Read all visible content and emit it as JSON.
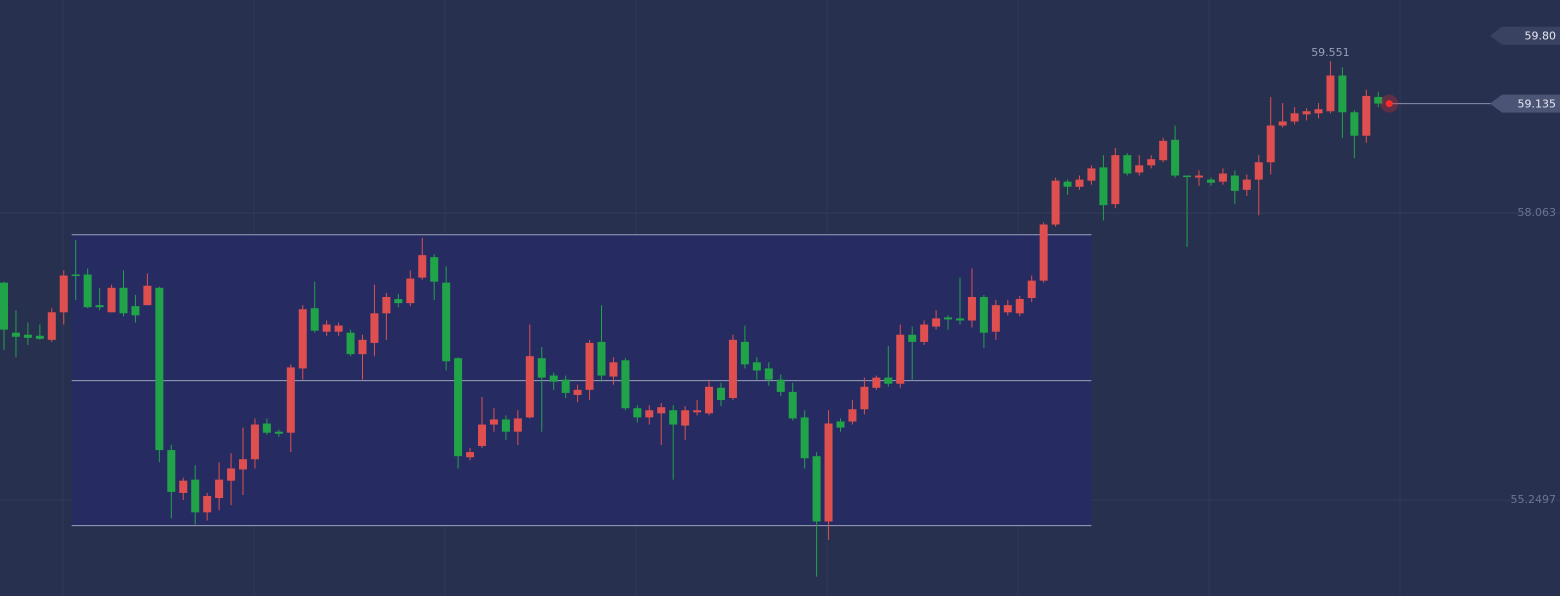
{
  "chart_data": {
    "type": "candlestick",
    "up_color": "#e04f4f",
    "down_color": "#21a349",
    "grid": true,
    "ylim": [
      54.31,
      60.15
    ],
    "yticks": [
      58.063,
      55.2497
    ],
    "marker": {
      "value": 59.8,
      "label": "59.80"
    },
    "channel": [
      57.85,
      56.42,
      55.0
    ],
    "open": [
      57.38,
      56.89,
      56.87,
      56.86,
      56.82,
      57.09,
      57.46,
      57.46,
      57.16,
      57.09,
      57.33,
      57.15,
      57.16,
      57.33,
      55.74,
      55.32,
      55.45,
      55.13,
      55.27,
      55.44,
      55.55,
      55.65,
      56.0,
      55.92,
      55.91,
      56.54,
      57.13,
      56.9,
      56.9,
      56.89,
      56.68,
      56.79,
      57.08,
      57.22,
      57.18,
      57.43,
      57.63,
      57.38,
      56.64,
      55.67,
      55.78,
      55.99,
      56.04,
      55.92,
      56.06,
      56.64,
      56.47,
      56.43,
      56.28,
      56.33,
      56.8,
      56.46,
      56.62,
      56.15,
      56.06,
      56.1,
      56.13,
      55.98,
      56.11,
      56.1,
      56.35,
      56.25,
      56.8,
      56.6,
      56.54,
      56.43,
      56.31,
      56.06,
      55.68,
      55.04,
      56.02,
      56.02,
      56.14,
      56.35,
      56.45,
      56.39,
      56.87,
      56.8,
      56.95,
      57.04,
      57.03,
      57.01,
      57.24,
      56.9,
      57.09,
      57.08,
      57.23,
      57.4,
      57.95,
      58.37,
      58.32,
      58.38,
      58.51,
      58.15,
      58.63,
      58.46,
      58.53,
      58.58,
      58.78,
      58.43,
      58.41,
      58.39,
      58.37,
      58.43,
      58.29,
      58.39,
      58.56,
      58.92,
      58.96,
      59.03,
      59.04,
      59.06,
      59.41,
      59.05,
      58.82,
      59.2
    ],
    "high": [
      57.39,
      57.11,
      56.99,
      56.97,
      57.13,
      57.5,
      57.8,
      57.52,
      57.33,
      57.36,
      57.5,
      57.26,
      57.47,
      57.34,
      55.79,
      55.47,
      55.59,
      55.32,
      55.62,
      55.71,
      55.96,
      56.05,
      56.05,
      55.94,
      56.58,
      57.16,
      57.39,
      57.01,
      56.99,
      56.92,
      56.87,
      57.36,
      57.28,
      57.27,
      57.5,
      57.82,
      57.66,
      57.54,
      56.65,
      55.76,
      56.26,
      56.15,
      56.08,
      56.13,
      56.97,
      56.75,
      56.5,
      56.47,
      56.38,
      56.82,
      57.16,
      56.65,
      56.64,
      56.18,
      56.18,
      56.2,
      56.18,
      56.17,
      56.23,
      56.43,
      56.4,
      56.87,
      56.96,
      56.65,
      56.6,
      56.48,
      56.4,
      56.13,
      55.72,
      56.13,
      56.05,
      56.23,
      56.45,
      56.47,
      56.76,
      56.97,
      56.95,
      57.01,
      57.11,
      57.06,
      57.43,
      57.52,
      57.26,
      57.21,
      57.21,
      57.25,
      57.45,
      57.97,
      58.41,
      58.39,
      58.43,
      58.53,
      58.63,
      58.7,
      58.65,
      58.63,
      58.63,
      58.8,
      58.92,
      58.43,
      58.48,
      58.41,
      58.5,
      58.48,
      58.44,
      58.63,
      59.2,
      59.14,
      59.1,
      59.09,
      59.14,
      59.551,
      59.49,
      59.07,
      59.27,
      59.25
    ],
    "low": [
      56.72,
      56.65,
      56.77,
      56.82,
      56.8,
      56.97,
      57.21,
      57.13,
      57.11,
      57.09,
      57.05,
      56.99,
      57.16,
      55.62,
      55.07,
      55.25,
      55.01,
      55.05,
      55.15,
      55.2,
      55.3,
      55.56,
      55.89,
      55.87,
      55.72,
      56.43,
      56.89,
      56.86,
      56.86,
      56.66,
      56.43,
      56.66,
      56.82,
      57.14,
      57.15,
      57.41,
      57.21,
      56.52,
      55.56,
      55.64,
      55.76,
      55.92,
      55.84,
      55.79,
      56.05,
      55.92,
      56.33,
      56.25,
      56.21,
      56.23,
      56.41,
      56.38,
      56.13,
      56.01,
      55.99,
      55.79,
      55.45,
      55.84,
      56.08,
      56.08,
      56.17,
      56.23,
      56.54,
      56.43,
      56.37,
      56.27,
      56.03,
      55.56,
      54.5,
      54.86,
      55.92,
      55.99,
      56.09,
      56.33,
      56.36,
      56.35,
      56.43,
      56.77,
      56.92,
      56.92,
      56.97,
      56.94,
      56.74,
      56.82,
      57.06,
      57.05,
      57.19,
      57.38,
      57.93,
      58.24,
      58.29,
      58.34,
      57.99,
      58.11,
      58.43,
      58.43,
      58.5,
      58.56,
      58.41,
      57.73,
      58.33,
      58.33,
      58.34,
      58.15,
      58.23,
      58.04,
      58.44,
      58.9,
      58.93,
      58.97,
      58.99,
      59.04,
      58.8,
      58.6,
      58.75,
      59.1
    ],
    "close": [
      56.92,
      56.85,
      56.84,
      56.83,
      57.09,
      57.45,
      57.45,
      57.14,
      57.14,
      57.33,
      57.08,
      57.06,
      57.35,
      55.74,
      55.33,
      55.44,
      55.13,
      55.29,
      55.45,
      55.56,
      55.65,
      55.99,
      55.91,
      55.9,
      56.55,
      57.12,
      56.91,
      56.97,
      56.96,
      56.68,
      56.82,
      57.08,
      57.24,
      57.18,
      57.42,
      57.65,
      57.39,
      56.61,
      55.68,
      55.72,
      55.99,
      56.04,
      55.92,
      56.05,
      56.66,
      56.45,
      56.41,
      56.3,
      56.33,
      56.79,
      56.47,
      56.6,
      56.15,
      56.06,
      56.13,
      56.16,
      55.99,
      56.13,
      56.13,
      56.36,
      56.23,
      56.82,
      56.58,
      56.52,
      56.43,
      56.31,
      56.05,
      55.66,
      55.04,
      56.0,
      55.96,
      56.14,
      56.36,
      56.45,
      56.39,
      56.87,
      56.8,
      56.97,
      57.03,
      57.02,
      57.01,
      57.24,
      56.89,
      57.16,
      57.16,
      57.22,
      57.4,
      57.95,
      58.38,
      58.32,
      58.39,
      58.5,
      58.14,
      58.63,
      58.45,
      58.53,
      58.59,
      58.77,
      58.43,
      58.42,
      58.43,
      58.36,
      58.45,
      58.28,
      58.39,
      58.56,
      58.92,
      58.96,
      59.04,
      59.06,
      59.08,
      59.41,
      59.05,
      58.82,
      59.21,
      59.135
    ]
  }
}
